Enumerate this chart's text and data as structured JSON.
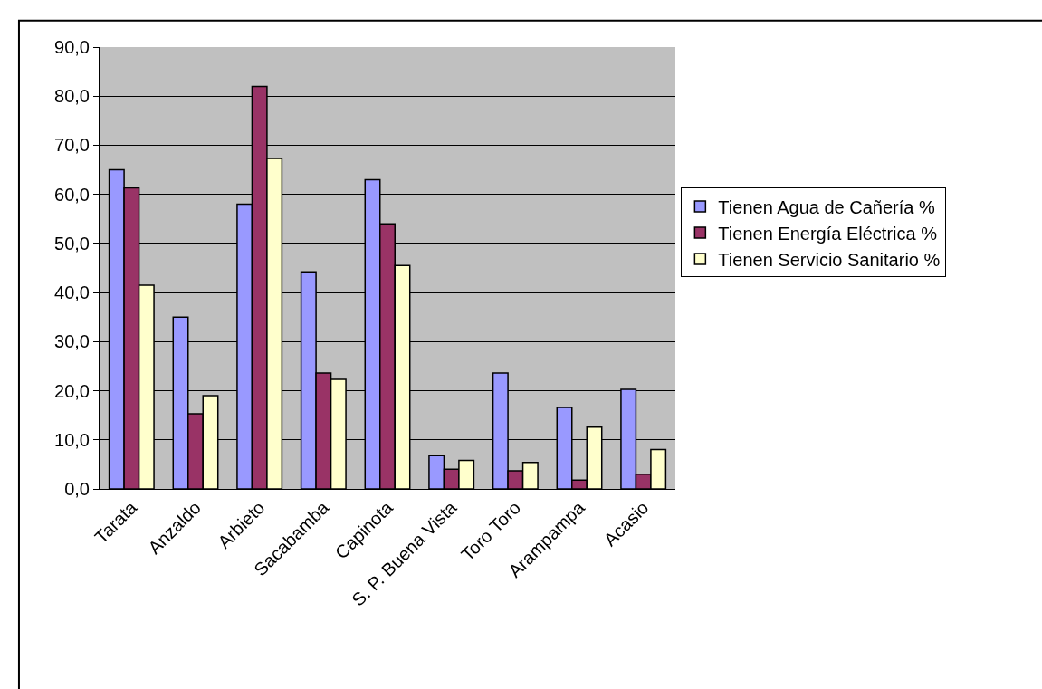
{
  "chart_data": {
    "type": "bar",
    "categories": [
      "Tarata",
      "Anzaldo",
      "Arbieto",
      "Sacabamba",
      "Capinota",
      "S. P. Buena Vista",
      "Toro Toro",
      "Arampampa",
      "Acasio"
    ],
    "series": [
      {
        "name": "Tienen Agua de Cañería %",
        "color": "#9999ff",
        "values": [
          65,
          35,
          58,
          44.2,
          63,
          6.8,
          23.6,
          16.6,
          20.3
        ]
      },
      {
        "name": "Tienen Energía Eléctrica %",
        "color": "#993366",
        "values": [
          61.3,
          15.3,
          82,
          23.6,
          54,
          4,
          3.7,
          1.8,
          3
        ]
      },
      {
        "name": "Tienen Servicio Sanitario %",
        "color": "#ffffcc",
        "values": [
          41.5,
          19,
          67.3,
          22.3,
          45.5,
          5.8,
          5.4,
          12.6,
          8
        ]
      }
    ],
    "ylim": [
      0,
      90
    ],
    "yticks": [
      {
        "value": 0,
        "label": "0,0"
      },
      {
        "value": 10,
        "label": "10,0"
      },
      {
        "value": 20,
        "label": "20,0"
      },
      {
        "value": 30,
        "label": "30,0"
      },
      {
        "value": 40,
        "label": "40,0"
      },
      {
        "value": 50,
        "label": "50,0"
      },
      {
        "value": 60,
        "label": "60,0"
      },
      {
        "value": 70,
        "label": "70,0"
      },
      {
        "value": 80,
        "label": "80,0"
      },
      {
        "value": 90,
        "label": "90,0"
      }
    ],
    "grid": "y",
    "legend": "right"
  }
}
